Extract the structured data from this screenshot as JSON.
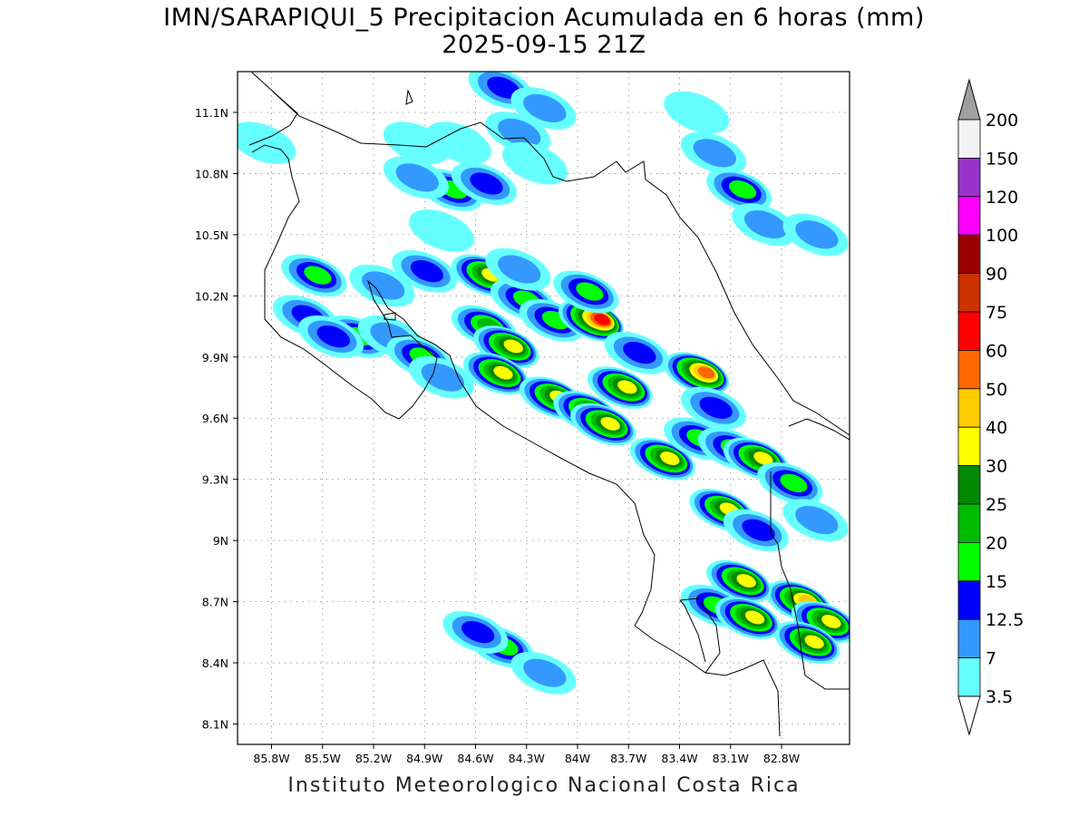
{
  "title": {
    "line1": "IMN/SARAPIQUI_5 Precipitacion Acumulada en 6 horas (mm)",
    "line2": "2025-09-15 21Z"
  },
  "footer": "Instituto Meteorologico Nacional Costa Rica",
  "map": {
    "lon_range": [
      -86.0,
      -82.4
    ],
    "lat_range": [
      8.0,
      11.3
    ],
    "lat_ticks": [
      "11.1N",
      "10.8N",
      "10.5N",
      "10.2N",
      "9.9N",
      "9.6N",
      "9.3N",
      "9N",
      "8.7N",
      "8.4N",
      "8.1N"
    ],
    "lon_ticks": [
      "85.8W",
      "85.5W",
      "85.2W",
      "84.9W",
      "84.6W",
      "84.3W",
      "84W",
      "83.7W",
      "83.4W",
      "83.1W",
      "82.8W"
    ],
    "grid": "dotted"
  },
  "colorbar": {
    "labels": [
      "200",
      "150",
      "120",
      "100",
      "90",
      "75",
      "60",
      "50",
      "40",
      "30",
      "25",
      "20",
      "15",
      "12.5",
      "7",
      "3.5"
    ],
    "colors": [
      "#a0a0a0",
      "#f2f2f2",
      "#9933cc",
      "#ff00ff",
      "#990000",
      "#cc3300",
      "#ff0000",
      "#ff6600",
      "#ffcc00",
      "#ffff00",
      "#008800",
      "#00bb00",
      "#00ff00",
      "#0000ff",
      "#3399ff",
      "#66ffff"
    ]
  },
  "levels": {
    "l1": "#66ffff",
    "l2": "#3399ff",
    "l3": "#0000ff",
    "l4": "#00ff00",
    "l5": "#00bb00",
    "l6": "#008800",
    "l7": "#ffff00",
    "l8": "#ffcc00",
    "l9": "#ff6600",
    "l10": "#ff0000"
  },
  "cells": [
    {
      "lon": -84.45,
      "lat": 11.22,
      "levels": 3
    },
    {
      "lon": -84.2,
      "lat": 11.12,
      "levels": 2
    },
    {
      "lon": -84.35,
      "lat": 11.0,
      "levels": 2
    },
    {
      "lon": -84.7,
      "lat": 10.95,
      "levels": 1
    },
    {
      "lon": -84.95,
      "lat": 10.95,
      "levels": 1
    },
    {
      "lon": -84.75,
      "lat": 10.72,
      "levels": 4
    },
    {
      "lon": -84.95,
      "lat": 10.78,
      "levels": 2
    },
    {
      "lon": -84.55,
      "lat": 10.75,
      "levels": 3
    },
    {
      "lon": -84.25,
      "lat": 10.85,
      "levels": 1
    },
    {
      "lon": -84.8,
      "lat": 10.52,
      "levels": 1
    },
    {
      "lon": -83.3,
      "lat": 11.1,
      "levels": 1
    },
    {
      "lon": -83.2,
      "lat": 10.9,
      "levels": 2
    },
    {
      "lon": -83.05,
      "lat": 10.72,
      "levels": 4
    },
    {
      "lon": -82.9,
      "lat": 10.55,
      "levels": 2
    },
    {
      "lon": -82.6,
      "lat": 10.5,
      "levels": 2
    },
    {
      "lon": -85.55,
      "lat": 10.3,
      "levels": 4
    },
    {
      "lon": -85.6,
      "lat": 10.1,
      "levels": 3
    },
    {
      "lon": -85.3,
      "lat": 10.0,
      "levels": 4
    },
    {
      "lon": -85.1,
      "lat": 10.0,
      "levels": 2
    },
    {
      "lon": -84.93,
      "lat": 9.9,
      "levels": 4
    },
    {
      "lon": -84.9,
      "lat": 10.32,
      "levels": 3
    },
    {
      "lon": -85.15,
      "lat": 10.25,
      "levels": 2
    },
    {
      "lon": -84.55,
      "lat": 10.3,
      "levels": 7
    },
    {
      "lon": -84.32,
      "lat": 10.18,
      "levels": 4
    },
    {
      "lon": -84.35,
      "lat": 10.33,
      "levels": 2
    },
    {
      "lon": -84.55,
      "lat": 10.05,
      "levels": 5
    },
    {
      "lon": -84.42,
      "lat": 9.95,
      "levels": 7
    },
    {
      "lon": -84.48,
      "lat": 9.82,
      "levels": 7
    },
    {
      "lon": -84.15,
      "lat": 10.08,
      "levels": 4
    },
    {
      "lon": -83.92,
      "lat": 10.08,
      "levels": 10
    },
    {
      "lon": -83.95,
      "lat": 10.22,
      "levels": 4
    },
    {
      "lon": -83.65,
      "lat": 9.92,
      "levels": 3
    },
    {
      "lon": -83.3,
      "lat": 9.82,
      "levels": 9
    },
    {
      "lon": -84.15,
      "lat": 9.7,
      "levels": 7
    },
    {
      "lon": -83.95,
      "lat": 9.63,
      "levels": 7
    },
    {
      "lon": -83.85,
      "lat": 9.57,
      "levels": 7
    },
    {
      "lon": -83.75,
      "lat": 9.75,
      "levels": 7
    },
    {
      "lon": -83.5,
      "lat": 9.4,
      "levels": 7
    },
    {
      "lon": -83.3,
      "lat": 9.5,
      "levels": 4
    },
    {
      "lon": -83.1,
      "lat": 9.45,
      "levels": 4
    },
    {
      "lon": -82.95,
      "lat": 9.4,
      "levels": 7
    },
    {
      "lon": -82.75,
      "lat": 9.28,
      "levels": 4
    },
    {
      "lon": -83.15,
      "lat": 9.15,
      "levels": 7
    },
    {
      "lon": -83.2,
      "lat": 9.65,
      "levels": 3
    },
    {
      "lon": -82.95,
      "lat": 9.05,
      "levels": 3
    },
    {
      "lon": -82.6,
      "lat": 9.1,
      "levels": 2
    },
    {
      "lon": -82.7,
      "lat": 8.7,
      "levels": 8
    },
    {
      "lon": -82.55,
      "lat": 8.6,
      "levels": 7
    },
    {
      "lon": -82.65,
      "lat": 8.5,
      "levels": 7
    },
    {
      "lon": -83.05,
      "lat": 8.8,
      "levels": 7
    },
    {
      "lon": -83.2,
      "lat": 8.68,
      "levels": 4
    },
    {
      "lon": -83.0,
      "lat": 8.62,
      "levels": 7
    },
    {
      "lon": -84.45,
      "lat": 8.48,
      "levels": 4
    },
    {
      "lon": -84.6,
      "lat": 8.55,
      "levels": 3
    },
    {
      "lon": -84.2,
      "lat": 8.35,
      "levels": 2
    },
    {
      "lon": -85.85,
      "lat": 10.95,
      "levels": 1
    },
    {
      "lon": -85.45,
      "lat": 10.0,
      "levels": 3
    },
    {
      "lon": -84.8,
      "lat": 9.8,
      "levels": 2
    }
  ]
}
